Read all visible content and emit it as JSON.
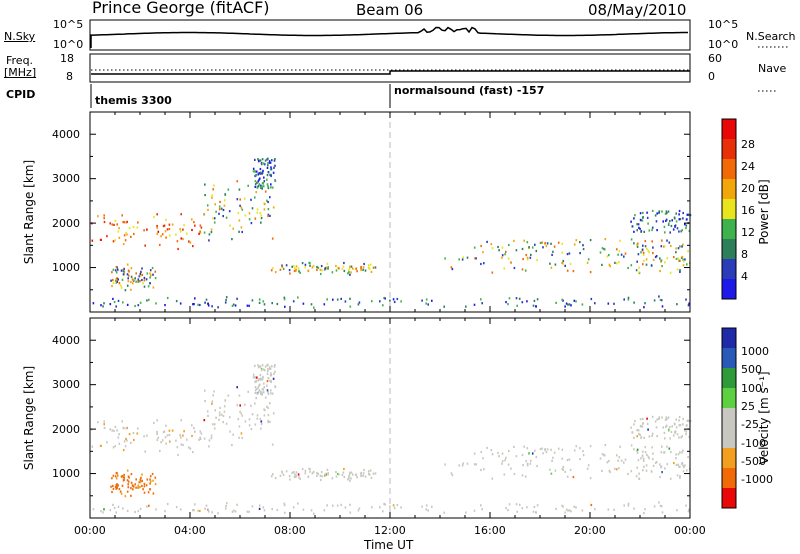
{
  "header": {
    "title": "Prince George (fitACF)",
    "beam": "Beam 06",
    "date": "08/May/2010"
  },
  "strip": {
    "nsky_label": "N.Sky",
    "nsky_ticks": [
      "10^5",
      "10^0"
    ],
    "nsearch_label": "N.Search",
    "nsearch_ticks": [
      "10^5",
      "10^0"
    ],
    "freq_label": "Freq.",
    "freq_unit": "[MHz]",
    "freq_ticks": [
      "18",
      "8"
    ],
    "nave_label": "Nave",
    "nave_ticks": [
      "60",
      "0"
    ],
    "cpid_label": "CPID",
    "cpid_1": "themis 3300",
    "cpid_2": "normalsound (fast) -157"
  },
  "colors": {
    "power_scale": [
      "#1e18e8",
      "#2a3cb8",
      "#2d7f5a",
      "#3fb24d",
      "#e8e41d",
      "#f2a60a",
      "#f26a07",
      "#e83008",
      "#e80808"
    ],
    "velocity_scale": [
      "#e80808",
      "#f26a07",
      "#f29e1e",
      "#c8c8c0",
      "#c8c8c0",
      "#5cd040",
      "#2e9a3a",
      "#2a5ab8",
      "#1e2aa8"
    ],
    "ground": "#c8c8c0"
  },
  "chart_data": [
    {
      "type": "heatmap",
      "title": "Power",
      "ylabel": "Slant Range [km]",
      "ylim": [
        0,
        4500
      ],
      "y_ticks": [
        "4000",
        "3000",
        "2000",
        "1000"
      ],
      "x_ticks": [
        "00:00",
        "04:00",
        "08:00",
        "12:00",
        "16:00",
        "20:00",
        "00:00"
      ],
      "xlim_hours": [
        0,
        24
      ],
      "colorbar_label": "Power [dB]",
      "colorbar_ticks": [
        "28",
        "24",
        "20",
        "16",
        "12",
        "8",
        "4"
      ],
      "colorbar_range": [
        0,
        30
      ],
      "features": [
        {
          "t": [
            0,
            4.5
          ],
          "r": [
            1400,
            2300
          ],
          "level": "high"
        },
        {
          "t": [
            4.5,
            7.4
          ],
          "r": [
            1500,
            3000
          ],
          "level": "medium"
        },
        {
          "t": [
            6.5,
            7.4
          ],
          "r": [
            2800,
            3500
          ],
          "level": "low"
        },
        {
          "t": [
            0.8,
            2.6
          ],
          "r": [
            500,
            1100
          ],
          "level": "medium"
        },
        {
          "t": [
            7.2,
            11.4
          ],
          "r": [
            850,
            1150
          ],
          "level": "medium"
        },
        {
          "t": [
            14.0,
            24.0
          ],
          "r": [
            850,
            1400
          ],
          "level": "medium"
        },
        {
          "t": [
            15.2,
            24.0
          ],
          "r": [
            1300,
            1700
          ],
          "level": "medium"
        },
        {
          "t": [
            21.6,
            24.0
          ],
          "r": [
            1800,
            2300
          ],
          "level": "low"
        },
        {
          "t": [
            0,
            24
          ],
          "r": [
            100,
            400
          ],
          "level": "low"
        }
      ]
    },
    {
      "type": "heatmap",
      "title": "Velocity",
      "ylabel": "Slant Range [km]",
      "ylim": [
        0,
        4500
      ],
      "y_ticks": [
        "4000",
        "3000",
        "2000",
        "1000"
      ],
      "x_ticks": [
        "00:00",
        "04:00",
        "08:00",
        "12:00",
        "16:00",
        "20:00",
        "00:00"
      ],
      "xlim_hours": [
        0,
        24
      ],
      "xlabel": "Time UT",
      "colorbar_label": "Velocity [m s⁻¹]",
      "colorbar_ticks": [
        "1000",
        "500",
        "100",
        "25",
        "-25",
        "-100",
        "-500",
        "-1000"
      ],
      "colorbar_range": [
        -1000,
        1000
      ]
    }
  ]
}
